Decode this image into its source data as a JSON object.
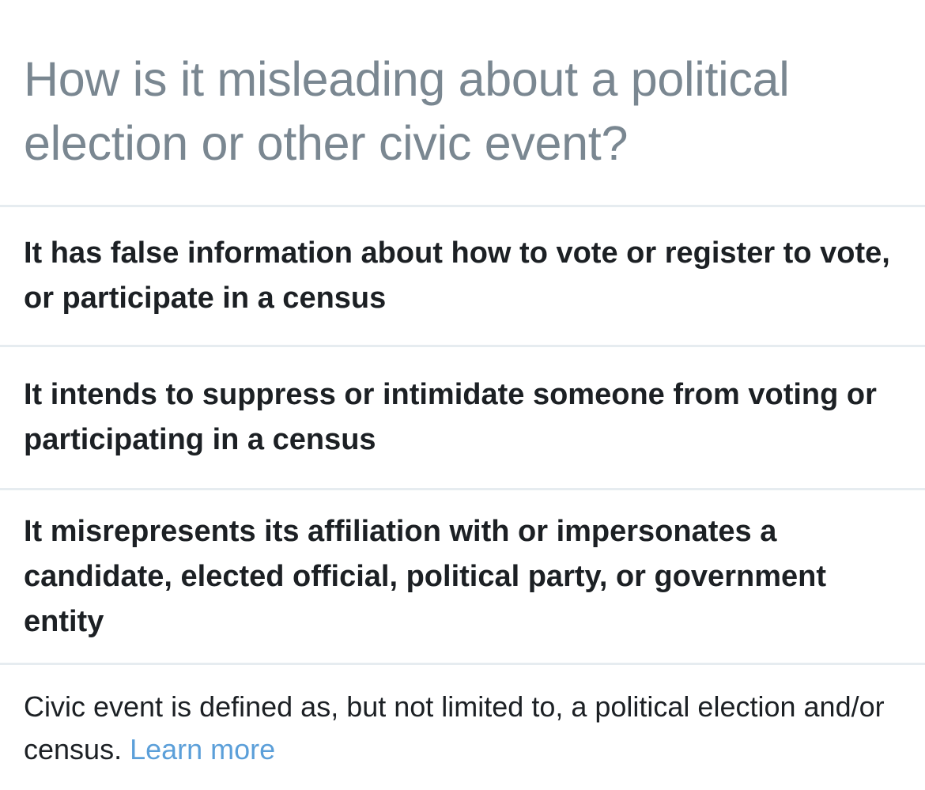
{
  "header": {
    "title": "How is it misleading about a political election or other civic event?"
  },
  "options": [
    {
      "label": "It has false information about how to vote or register to vote, or participate in a census"
    },
    {
      "label": "It intends to suppress or intimidate someone from voting or participating in a census"
    },
    {
      "label": "It misrepresents its affiliation with or impersonates a candidate, elected official, political party, or government entity"
    }
  ],
  "footer": {
    "text": "Civic event is defined as, but not limited to, a political election and/or census.",
    "link_label": "Learn more"
  },
  "colors": {
    "title_text": "#7a8791",
    "body_text": "#1c2024",
    "divider": "#e6ecf0",
    "link": "#5b9fd9"
  }
}
